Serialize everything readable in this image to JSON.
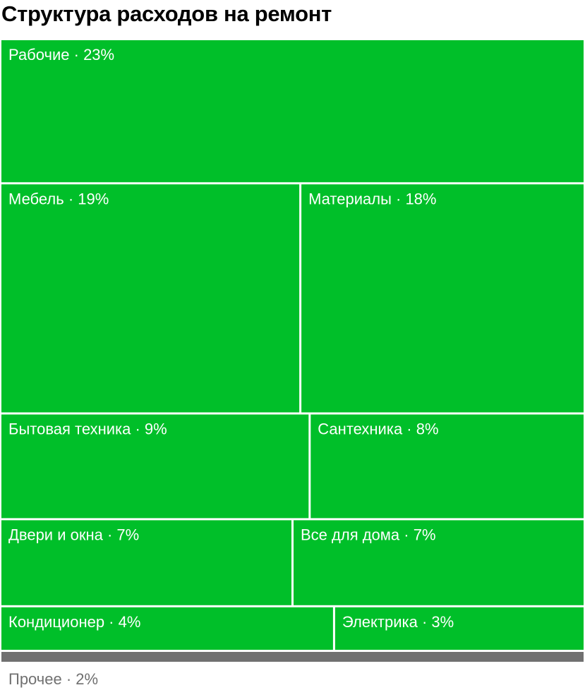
{
  "chart_data": {
    "type": "treemap",
    "title": "Структура расходов на ремонт",
    "colors": {
      "tile": "#00bf29",
      "tile_text": "#ffffff",
      "other_bar": "#707070",
      "other_text": "#707070",
      "gap": "#ffffff"
    },
    "items": [
      {
        "label": "Рабочие · 23%",
        "category": "Рабочие",
        "value": 23
      },
      {
        "label": "Мебель · 19%",
        "category": "Мебель",
        "value": 19
      },
      {
        "label": "Материалы · 18%",
        "category": "Материалы",
        "value": 18
      },
      {
        "label": "Бытовая техника · 9%",
        "category": "Бытовая техника",
        "value": 9
      },
      {
        "label": "Сантехника · 8%",
        "category": "Сантехника",
        "value": 8
      },
      {
        "label": "Двери и окна · 7%",
        "category": "Двери и окна",
        "value": 7
      },
      {
        "label": "Все для дома · 7%",
        "category": "Все для дома",
        "value": 7
      },
      {
        "label": "Кондиционер · 4%",
        "category": "Кондиционер",
        "value": 4
      },
      {
        "label": "Электрика · 3%",
        "category": "Электрика",
        "value": 3
      }
    ],
    "rows": [
      [
        0
      ],
      [
        1,
        2
      ],
      [
        3,
        4
      ],
      [
        5,
        6
      ],
      [
        7,
        8
      ]
    ],
    "other": {
      "label": "Прочее · 2%",
      "category": "Прочее",
      "value": 2
    }
  }
}
